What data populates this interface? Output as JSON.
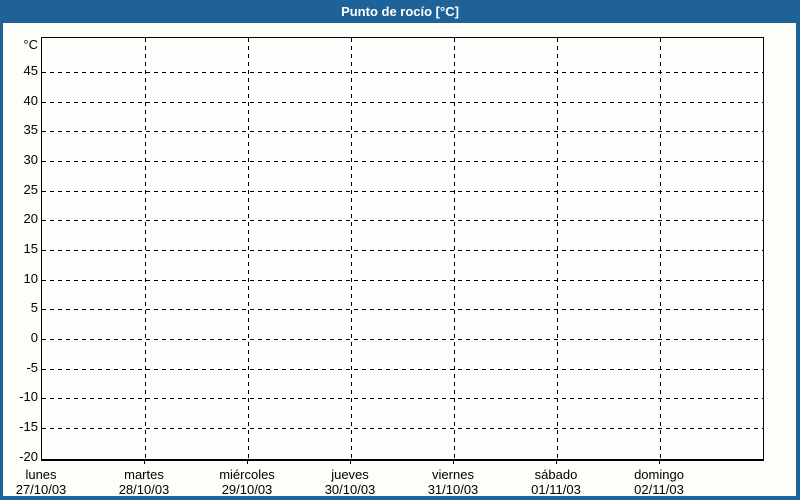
{
  "header": {
    "title": "Punto de rocío [°C]"
  },
  "colors": {
    "accent_blue": "#1e6298",
    "title_text": "#ffffff",
    "grid_line": "#000000",
    "axis_line": "#000000",
    "tick_label_text": "#000000"
  },
  "chart_data": {
    "type": "line",
    "title": "Punto de rocío [°C]",
    "ylabel": "°C",
    "ylim": [
      -20,
      50
    ],
    "yticks": [
      45,
      40,
      35,
      30,
      25,
      20,
      15,
      10,
      5,
      0,
      -5,
      -10,
      -15,
      -20
    ],
    "grid": true,
    "legend_position": "none",
    "x_days": [
      {
        "name": "lunes",
        "date": "27/10/03"
      },
      {
        "name": "martes",
        "date": "28/10/03"
      },
      {
        "name": "miércoles",
        "date": "29/10/03"
      },
      {
        "name": "jueves",
        "date": "30/10/03"
      },
      {
        "name": "viernes",
        "date": "31/10/03"
      },
      {
        "name": "sábado",
        "date": "01/11/03"
      },
      {
        "name": "domingo",
        "date": "02/11/03"
      }
    ],
    "series": []
  }
}
